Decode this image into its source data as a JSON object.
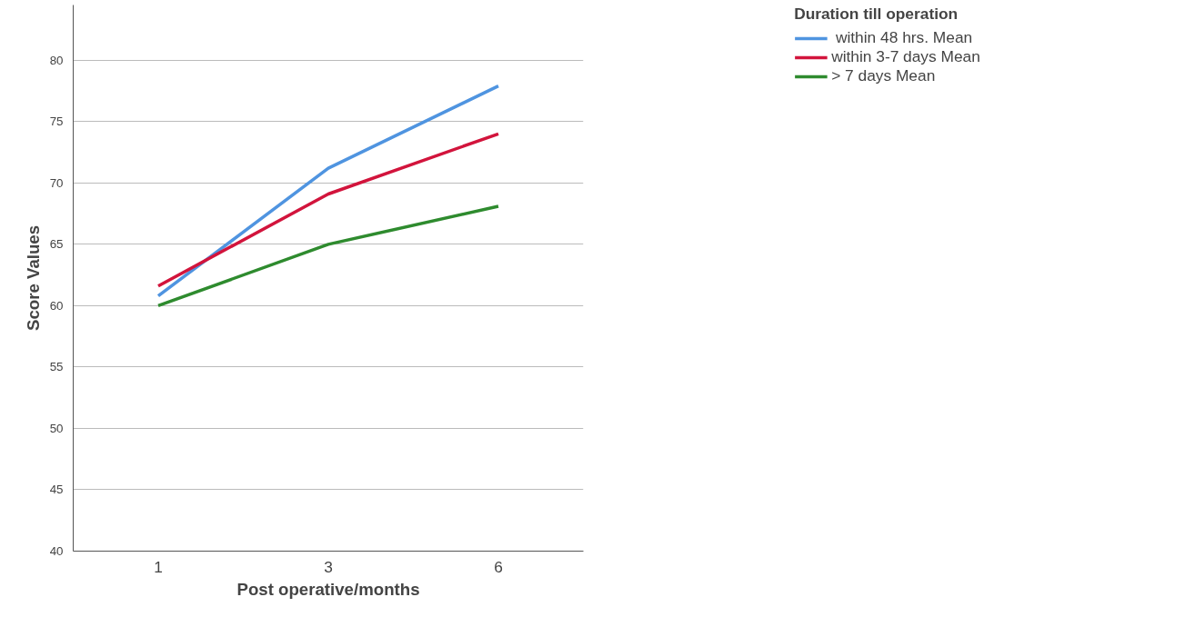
{
  "chart_data": {
    "type": "line",
    "xlabel": "Post operative/months",
    "ylabel": "Score Values",
    "legend_title": "Duration till operation",
    "categories": [
      "1",
      "3",
      "6"
    ],
    "series": [
      {
        "name": " within 48 hrs. Mean",
        "color": "#4f94e0",
        "values": [
          60.8,
          71.2,
          77.9
        ]
      },
      {
        "name": "within 3-7 days Mean",
        "color": "#d2143c",
        "values": [
          61.6,
          69.1,
          74.0
        ]
      },
      {
        "name": "> 7 days Mean",
        "color": "#2e8b2e",
        "values": [
          60.0,
          65.0,
          68.1
        ]
      }
    ],
    "ylim": [
      40,
      84.5
    ],
    "yticks": [
      40,
      45,
      50,
      55,
      60,
      65,
      70,
      75,
      80
    ],
    "grid": "y",
    "legend": "top right",
    "marker": "none",
    "line_style": "solid"
  }
}
